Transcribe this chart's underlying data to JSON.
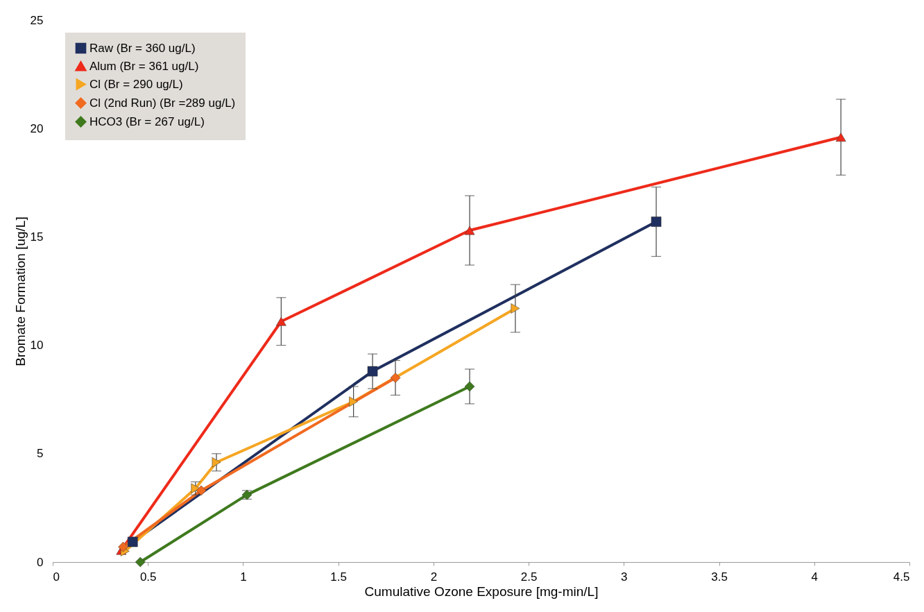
{
  "chart_data": {
    "type": "line",
    "xlabel": "Cumulative Ozone Exposure [mg-min/L]",
    "ylabel": "Bromate Formation [ug/L]",
    "xlim": [
      0,
      4.5
    ],
    "xticks": [
      0,
      0.5,
      1,
      1.5,
      2,
      2.5,
      3,
      3.5,
      4,
      4.5
    ],
    "ylim": [
      0,
      25
    ],
    "yticks": [
      0,
      5,
      10,
      15,
      20,
      25
    ],
    "legend": "top left",
    "grid": false,
    "series": [
      {
        "name": "Raw (Br = 360 ug/L)",
        "color": "#1f2f5f",
        "marker": "square",
        "x": [
          0.42,
          1.68,
          3.17
        ],
        "values": [
          0.93,
          8.8,
          15.7
        ],
        "errors": [
          null,
          0.8,
          1.6
        ]
      },
      {
        "name": "Alum (Br = 361 ug/L)",
        "color": "#ee2a1a",
        "marker": "triangle",
        "x": [
          0.36,
          1.2,
          2.19,
          4.14
        ],
        "values": [
          0.54,
          11.1,
          15.3,
          19.6
        ],
        "errors": [
          null,
          1.1,
          1.6,
          1.75
        ]
      },
      {
        "name": "Cl (Br = 290 ug/L)",
        "color": "#f5a623",
        "marker": "triangle-right",
        "x": [
          0.38,
          0.75,
          0.86,
          1.58,
          2.43
        ],
        "values": [
          0.5,
          3.4,
          4.6,
          7.4,
          11.7
        ],
        "errors": [
          null,
          0.3,
          0.4,
          0.7,
          1.1
        ]
      },
      {
        "name": "Cl (2nd Run) (Br =289 ug/L)",
        "color": "#f06a20",
        "marker": "diamond",
        "x": [
          0.37,
          0.78,
          1.8
        ],
        "values": [
          0.7,
          3.3,
          8.5
        ],
        "errors": [
          null,
          null,
          0.8
        ]
      },
      {
        "name": "HCO3 (Br = 267 ug/L)",
        "color": "#3f7a1e",
        "marker": "diamond",
        "x": [
          0.46,
          1.02,
          2.19
        ],
        "values": [
          0.0,
          3.1,
          8.1
        ],
        "errors": [
          null,
          0.2,
          0.8
        ]
      }
    ]
  }
}
